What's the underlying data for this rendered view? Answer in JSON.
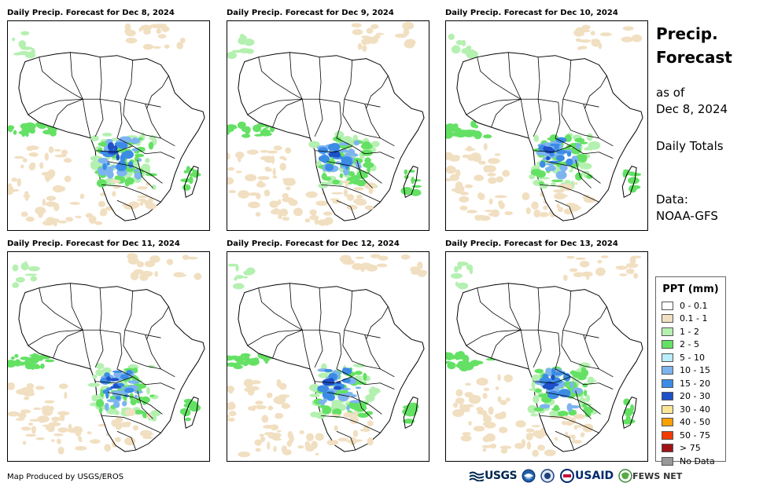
{
  "panels": [
    {
      "title": "Daily Precip. Forecast for Dec 8, 2024"
    },
    {
      "title": "Daily Precip. Forecast for Dec 9, 2024"
    },
    {
      "title": "Daily Precip. Forecast for Dec 10, 2024"
    },
    {
      "title": "Daily Precip. Forecast for Dec 11, 2024"
    },
    {
      "title": "Daily Precip. Forecast for Dec 12, 2024"
    },
    {
      "title": "Daily Precip. Forecast for Dec 13, 2024"
    }
  ],
  "side": {
    "title_line1": "Precip.",
    "title_line2": "Forecast",
    "asof_line1": "as of",
    "asof_line2": "Dec 8, 2024",
    "totals": "Daily Totals",
    "data_line1": "Data:",
    "data_line2": "NOAA-GFS"
  },
  "legend": {
    "title": "PPT (mm)",
    "items": [
      {
        "label": "0 - 0.1",
        "color": "#ffffff"
      },
      {
        "label": "0.1 - 1",
        "color": "#f1dfc1"
      },
      {
        "label": "1 - 2",
        "color": "#b4f0b0"
      },
      {
        "label": "2 - 5",
        "color": "#64e164"
      },
      {
        "label": "5 - 10",
        "color": "#b9eefa"
      },
      {
        "label": "10 - 15",
        "color": "#7db4f0"
      },
      {
        "label": "15 - 20",
        "color": "#3c8ce6"
      },
      {
        "label": "20 - 30",
        "color": "#1e50c8"
      },
      {
        "label": "30 - 40",
        "color": "#fae696"
      },
      {
        "label": "40 - 50",
        "color": "#faa000"
      },
      {
        "label": "50 - 75",
        "color": "#f03c00"
      },
      {
        "label": "> 75",
        "color": "#a01414"
      },
      {
        "label": "No Data",
        "color": "#999999"
      }
    ]
  },
  "credit": "Map Produced by USGS/EROS",
  "logos": {
    "usgs": "USGS",
    "usaid": "USAID",
    "fews": "FEWS NET"
  }
}
